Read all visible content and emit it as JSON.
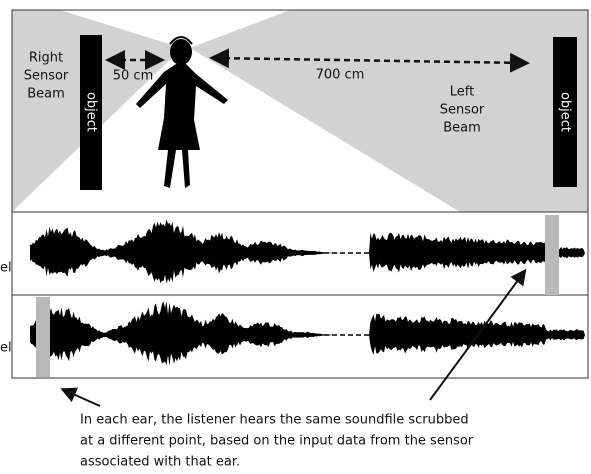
{
  "scene": {
    "right_beam_label": [
      "Right",
      "Sensor",
      "Beam"
    ],
    "left_beam_label": [
      "Left",
      "Sensor",
      "Beam"
    ],
    "left_object": "object",
    "right_object": "object",
    "near_distance": "50 cm",
    "far_distance": "700 cm"
  },
  "tracks": [
    {
      "label": "el"
    },
    {
      "label": "el"
    }
  ],
  "caption": [
    "In each ear, the listener hears the same soundfile scrubbed",
    "at a different point, based on the input data from the sensor",
    "associated with that ear."
  ]
}
